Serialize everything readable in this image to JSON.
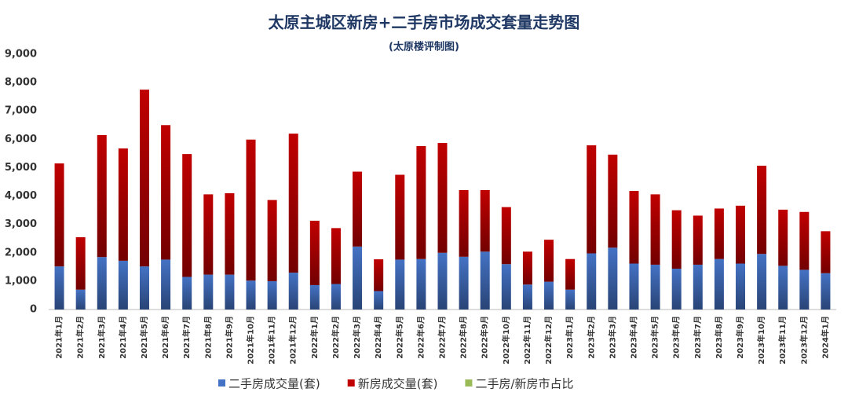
{
  "chart_data": {
    "type": "bar",
    "stacked": true,
    "title": "太原主城区新房+二手房市场成交套量走势图",
    "subtitle": "(太原楼评制图)",
    "categories": [
      "2021年1月",
      "2021年2月",
      "2021年3月",
      "2021年4月",
      "2021年5月",
      "2021年6月",
      "2021年7月",
      "2021年8月",
      "2021年9月",
      "2021年10月",
      "2021年11月",
      "2021年12月",
      "2022年1月",
      "2022年2月",
      "2022年3月",
      "2022年4月",
      "2022年5月",
      "2022年6月",
      "2022年7月",
      "2022年8月",
      "2022年9月",
      "2022年10月",
      "2022年11月",
      "2022年12月",
      "2023年1月",
      "2023年2月",
      "2023年3月",
      "2023年4月",
      "2023年5月",
      "2023年6月",
      "2023年7月",
      "2023年8月",
      "2023年9月",
      "2023年10月",
      "2023年11月",
      "2023年12月",
      "2024年1月"
    ],
    "series": [
      {
        "name": "二手房成交量(套)",
        "color": "#4472c4",
        "values": [
          1520,
          700,
          1850,
          1720,
          1520,
          1760,
          1150,
          1230,
          1230,
          1020,
          1000,
          1300,
          860,
          900,
          2220,
          650,
          1760,
          1780,
          2000,
          1860,
          2040,
          1600,
          880,
          980,
          700,
          1980,
          2180,
          1620,
          1580,
          1440,
          1580,
          1780,
          1620,
          1960,
          1540,
          1400,
          1280
        ]
      },
      {
        "name": "新房成交量(套)",
        "color": "#c00000",
        "values": [
          3630,
          1850,
          4300,
          3960,
          6230,
          4740,
          4330,
          2830,
          2870,
          4970,
          2860,
          4900,
          2270,
          1970,
          2640,
          1120,
          2990,
          3980,
          3870,
          2350,
          2170,
          2010,
          1160,
          1480,
          1080,
          3810,
          3280,
          2560,
          2480,
          2060,
          1730,
          1780,
          2040,
          3110,
          1980,
          2040,
          1480
        ]
      },
      {
        "name": "二手房/新房市占比",
        "color": "#9bbb59",
        "type": "line",
        "values": [
          null,
          null,
          null,
          null,
          null,
          null,
          null,
          null,
          null,
          null,
          null,
          null,
          null,
          null,
          null,
          null,
          null,
          null,
          null,
          null,
          null,
          null,
          null,
          null,
          null,
          null,
          null,
          null,
          null,
          null,
          null,
          null,
          null,
          null,
          null,
          null,
          null
        ]
      }
    ],
    "ylim": [
      0,
      9000
    ],
    "yticks": [
      0,
      {
        "value": 1000,
        "label": "1,000"
      },
      {
        "value": 2000,
        "label": "2,000"
      },
      {
        "value": 3000,
        "label": "3,000"
      },
      {
        "value": 4000,
        "label": "4,000"
      },
      {
        "value": 5000,
        "label": "5,000"
      },
      {
        "value": 6000,
        "label": "6,000"
      },
      {
        "value": 7000,
        "label": "7,000"
      },
      {
        "value": 8000,
        "label": "8,000"
      },
      {
        "value": 9000,
        "label": "9,000"
      }
    ],
    "grid": false,
    "legend": "bottom"
  }
}
